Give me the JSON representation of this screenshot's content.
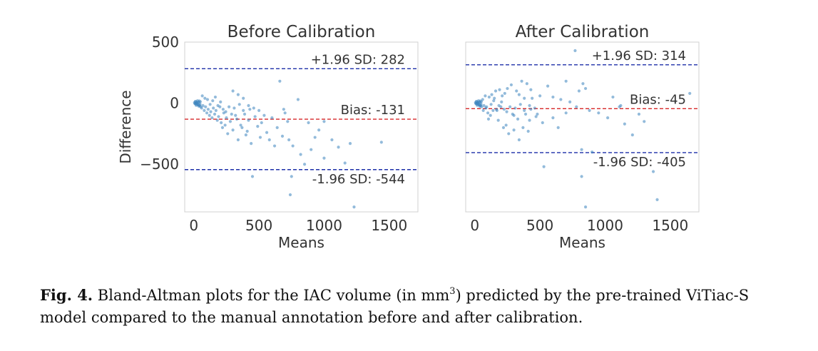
{
  "chart_data": [
    {
      "type": "scatter",
      "title": "Before Calibration",
      "xlabel": "Means",
      "ylabel": "Difference",
      "xlim": [
        -70,
        1720
      ],
      "ylim": [
        -890,
        500
      ],
      "xticks": [
        "0",
        "500",
        "1000",
        "1500"
      ],
      "yticks": [
        "500",
        "0",
        "−500"
      ],
      "grid": false,
      "reference_lines": [
        {
          "label": "+1.96 SD: 282",
          "value": 282,
          "color": "#1c2fa8"
        },
        {
          "label": "Bias: -131",
          "value": -131,
          "color": "#d62728"
        },
        {
          "label": "-1.96 SD: -544",
          "value": -544,
          "color": "#1c2fa8"
        }
      ],
      "points": [
        [
          5,
          5
        ],
        [
          10,
          -5
        ],
        [
          15,
          10
        ],
        [
          20,
          -10
        ],
        [
          25,
          0
        ],
        [
          30,
          8
        ],
        [
          35,
          -15
        ],
        [
          40,
          5
        ],
        [
          45,
          -20
        ],
        [
          50,
          12
        ],
        [
          12,
          15
        ],
        [
          18,
          -18
        ],
        [
          28,
          20
        ],
        [
          38,
          -25
        ],
        [
          48,
          -8
        ],
        [
          22,
          2
        ],
        [
          32,
          -12
        ],
        [
          42,
          18
        ],
        [
          52,
          -30
        ],
        [
          8,
          -2
        ],
        [
          60,
          -40
        ],
        [
          70,
          -20
        ],
        [
          80,
          -60
        ],
        [
          90,
          -30
        ],
        [
          100,
          -80
        ],
        [
          110,
          -50
        ],
        [
          120,
          -100
        ],
        [
          130,
          -70
        ],
        [
          140,
          -120
        ],
        [
          150,
          -40
        ],
        [
          160,
          -90
        ],
        [
          170,
          -60
        ],
        [
          180,
          -140
        ],
        [
          190,
          -110
        ],
        [
          200,
          -30
        ],
        [
          210,
          -160
        ],
        [
          220,
          -200
        ],
        [
          230,
          -80
        ],
        [
          240,
          -180
        ],
        [
          250,
          -120
        ],
        [
          65,
          60
        ],
        [
          85,
          40
        ],
        [
          105,
          30
        ],
        [
          125,
          -10
        ],
        [
          145,
          20
        ],
        [
          165,
          50
        ],
        [
          185,
          -20
        ],
        [
          205,
          10
        ],
        [
          225,
          -50
        ],
        [
          245,
          -70
        ],
        [
          260,
          -250
        ],
        [
          280,
          -150
        ],
        [
          300,
          -220
        ],
        [
          320,
          -100
        ],
        [
          340,
          -300
        ],
        [
          360,
          -180
        ],
        [
          380,
          -60
        ],
        [
          400,
          -260
        ],
        [
          420,
          -140
        ],
        [
          440,
          -330
        ],
        [
          300,
          100
        ],
        [
          340,
          70
        ],
        [
          380,
          40
        ],
        [
          420,
          -20
        ],
        [
          460,
          -40
        ],
        [
          500,
          -60
        ],
        [
          520,
          -160
        ],
        [
          560,
          -240
        ],
        [
          600,
          -120
        ],
        [
          640,
          -200
        ],
        [
          660,
          180
        ],
        [
          700,
          -80
        ],
        [
          730,
          -300
        ],
        [
          750,
          -600
        ],
        [
          760,
          -350
        ],
        [
          800,
          30
        ],
        [
          820,
          -420
        ],
        [
          850,
          -500
        ],
        [
          900,
          -380
        ],
        [
          930,
          -280
        ],
        [
          450,
          -600
        ],
        [
          740,
          -750
        ],
        [
          1000,
          -450
        ],
        [
          1060,
          -300
        ],
        [
          1110,
          -360
        ],
        [
          1160,
          -490
        ],
        [
          1200,
          -330
        ],
        [
          1230,
          -850
        ],
        [
          1440,
          -320
        ],
        [
          960,
          -220
        ],
        [
          270,
          -30
        ],
        [
          290,
          -90
        ],
        [
          310,
          -40
        ],
        [
          330,
          -130
        ],
        [
          350,
          -10
        ],
        [
          370,
          -200
        ],
        [
          390,
          -90
        ],
        [
          410,
          -230
        ],
        [
          430,
          -50
        ],
        [
          470,
          -110
        ],
        [
          490,
          -190
        ],
        [
          510,
          -280
        ],
        [
          540,
          -100
        ],
        [
          580,
          -300
        ],
        [
          620,
          -350
        ],
        [
          680,
          -270
        ],
        [
          880,
          -160
        ],
        [
          690,
          -50
        ],
        [
          720,
          -150
        ],
        [
          1000,
          -150
        ]
      ]
    },
    {
      "type": "scatter",
      "title": "After Calibration",
      "xlabel": "Means",
      "ylabel": "",
      "xlim": [
        -70,
        1720
      ],
      "ylim": [
        -890,
        500
      ],
      "xticks": [
        "0",
        "500",
        "1000",
        "1500"
      ],
      "yticks": [],
      "grid": false,
      "reference_lines": [
        {
          "label": "+1.96 SD: 314",
          "value": 314,
          "color": "#1c2fa8"
        },
        {
          "label": "Bias: -45",
          "value": -45,
          "color": "#d62728"
        },
        {
          "label": "-1.96 SD: -405",
          "value": -405,
          "color": "#1c2fa8"
        }
      ],
      "points": [
        [
          5,
          5
        ],
        [
          10,
          -5
        ],
        [
          15,
          10
        ],
        [
          20,
          -10
        ],
        [
          25,
          0
        ],
        [
          30,
          8
        ],
        [
          35,
          -15
        ],
        [
          40,
          5
        ],
        [
          45,
          -20
        ],
        [
          50,
          12
        ],
        [
          12,
          15
        ],
        [
          18,
          -18
        ],
        [
          28,
          20
        ],
        [
          38,
          -25
        ],
        [
          48,
          -8
        ],
        [
          22,
          2
        ],
        [
          32,
          -12
        ],
        [
          42,
          18
        ],
        [
          52,
          -30
        ],
        [
          8,
          -2
        ],
        [
          60,
          30
        ],
        [
          70,
          -20
        ],
        [
          80,
          60
        ],
        [
          90,
          -30
        ],
        [
          100,
          -80
        ],
        [
          110,
          50
        ],
        [
          120,
          -100
        ],
        [
          130,
          70
        ],
        [
          140,
          -60
        ],
        [
          150,
          40
        ],
        [
          160,
          100
        ],
        [
          170,
          -60
        ],
        [
          180,
          -140
        ],
        [
          190,
          110
        ],
        [
          200,
          -30
        ],
        [
          210,
          60
        ],
        [
          220,
          -200
        ],
        [
          230,
          80
        ],
        [
          240,
          -180
        ],
        [
          250,
          120
        ],
        [
          65,
          -60
        ],
        [
          85,
          -40
        ],
        [
          105,
          -130
        ],
        [
          125,
          -10
        ],
        [
          145,
          20
        ],
        [
          165,
          -50
        ],
        [
          185,
          -20
        ],
        [
          205,
          10
        ],
        [
          225,
          -50
        ],
        [
          245,
          -70
        ],
        [
          260,
          -250
        ],
        [
          280,
          150
        ],
        [
          300,
          -220
        ],
        [
          320,
          100
        ],
        [
          340,
          -300
        ],
        [
          360,
          180
        ],
        [
          380,
          -60
        ],
        [
          400,
          160
        ],
        [
          420,
          -140
        ],
        [
          440,
          40
        ],
        [
          300,
          -100
        ],
        [
          340,
          70
        ],
        [
          380,
          40
        ],
        [
          420,
          -20
        ],
        [
          460,
          -40
        ],
        [
          500,
          60
        ],
        [
          520,
          -160
        ],
        [
          560,
          140
        ],
        [
          600,
          -120
        ],
        [
          640,
          -200
        ],
        [
          660,
          30
        ],
        [
          700,
          -80
        ],
        [
          730,
          10
        ],
        [
          770,
          430
        ],
        [
          780,
          -30
        ],
        [
          800,
          100
        ],
        [
          820,
          -380
        ],
        [
          850,
          120
        ],
        [
          880,
          -60
        ],
        [
          900,
          -400
        ],
        [
          530,
          -520
        ],
        [
          820,
          -600
        ],
        [
          850,
          -850
        ],
        [
          1020,
          -120
        ],
        [
          1060,
          50
        ],
        [
          1120,
          -20
        ],
        [
          1210,
          -260
        ],
        [
          1260,
          -90
        ],
        [
          1370,
          -560
        ],
        [
          1400,
          -790
        ],
        [
          1650,
          80
        ],
        [
          950,
          -80
        ],
        [
          1150,
          -170
        ],
        [
          1110,
          -30
        ],
        [
          1300,
          -150
        ],
        [
          700,
          180
        ],
        [
          830,
          160
        ],
        [
          600,
          50
        ],
        [
          480,
          -90
        ],
        [
          430,
          110
        ],
        [
          270,
          -30
        ],
        [
          290,
          -90
        ],
        [
          310,
          -40
        ],
        [
          330,
          -130
        ],
        [
          350,
          -10
        ],
        [
          370,
          -200
        ],
        [
          390,
          -90
        ],
        [
          410,
          -230
        ],
        [
          430,
          -50
        ],
        [
          470,
          -110
        ]
      ]
    }
  ],
  "caption": {
    "label": "Fig. 4.",
    "text_before_sup": " Bland-Altman plots for the IAC volume (in mm",
    "sup": "3",
    "text_after_sup": ") predicted by the pre-trained ViTiac-S model compared to the manual annotation before and after calibration."
  }
}
